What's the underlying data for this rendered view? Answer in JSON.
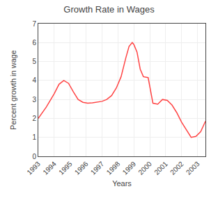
{
  "chart_data": {
    "type": "line",
    "title": "Growth Rate in Wages",
    "xlabel": "Years",
    "ylabel": "Percent growth in wage",
    "color": "#ff4444",
    "x": [
      1993,
      1993.5,
      1994,
      1994.3,
      1994.6,
      1994.9,
      1995.2,
      1995.5,
      1995.8,
      1996.1,
      1996.4,
      1996.7,
      1997.0,
      1997.3,
      1997.6,
      1997.9,
      1998.2,
      1998.5,
      1998.7,
      1998.9,
      1999.0,
      1999.2,
      1999.4,
      1999.6,
      1999.9,
      2000.2,
      2000.5,
      2000.8,
      2001.1,
      2001.4,
      2001.7,
      2002.0,
      2002.3,
      2002.6,
      2002.9,
      2003.2,
      2003.5
    ],
    "values": [
      2.0,
      2.6,
      3.3,
      3.8,
      4.0,
      3.85,
      3.4,
      3.0,
      2.85,
      2.8,
      2.82,
      2.85,
      2.9,
      3.0,
      3.2,
      3.6,
      4.2,
      5.2,
      5.8,
      6.0,
      5.9,
      5.5,
      4.6,
      4.2,
      4.15,
      2.8,
      2.75,
      3.0,
      2.95,
      2.7,
      2.3,
      1.8,
      1.4,
      1.0,
      1.05,
      1.3,
      1.85
    ],
    "xlim": [
      1993,
      2003.5
    ],
    "xticks": [
      1993,
      1994,
      1995,
      1996,
      1997,
      1998,
      1999,
      2000,
      2001,
      2002,
      2003
    ],
    "ylim": [
      0,
      7
    ],
    "yticks": [
      0,
      1,
      2,
      3,
      4,
      5,
      6,
      7
    ],
    "grid": true
  }
}
